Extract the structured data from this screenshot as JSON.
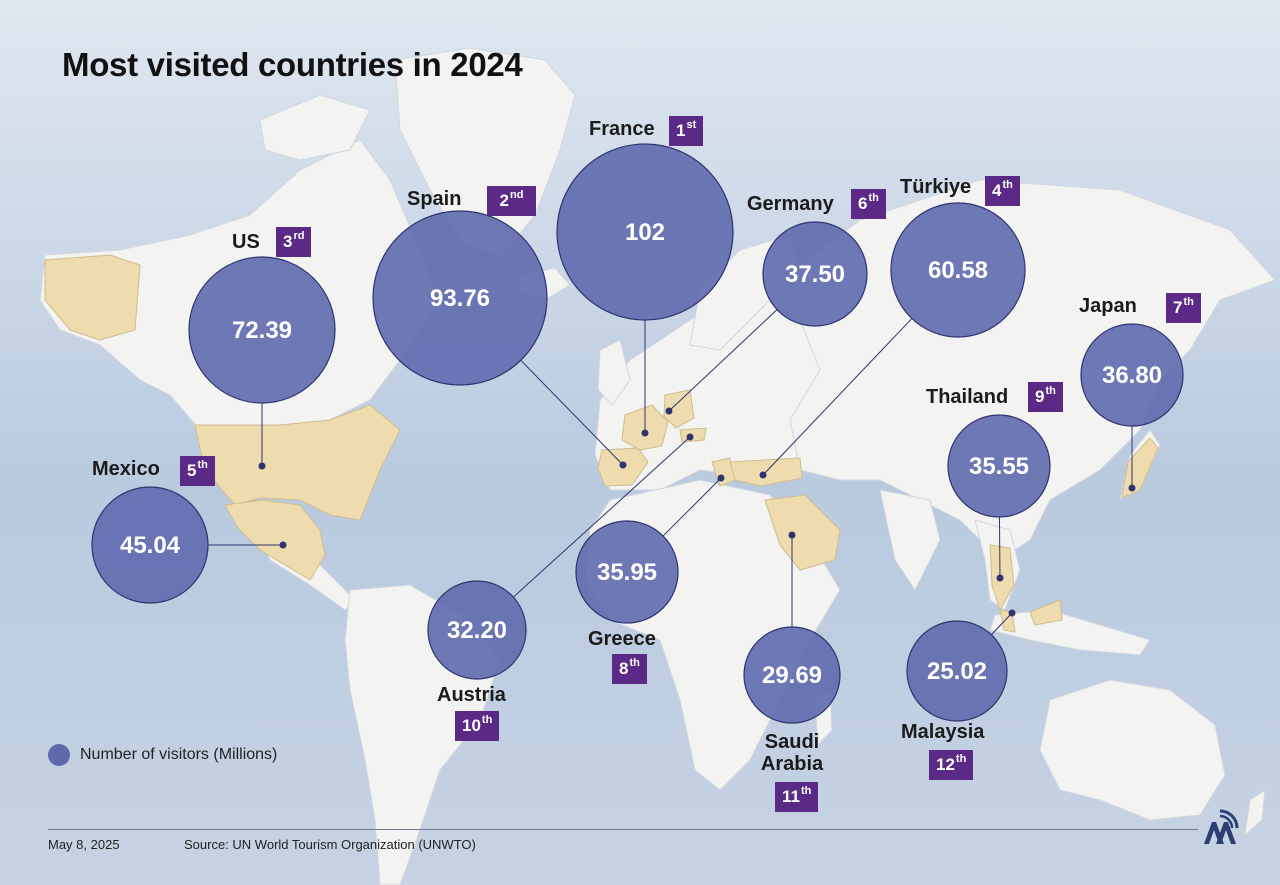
{
  "title": "Most visited countries in 2024",
  "colors": {
    "ocean": "#c3d2e3",
    "land": "#f2f2f0",
    "highlighted_land": "#efdcae",
    "bubble": "#5f6aae",
    "rank_badge": "#5b2a86",
    "connector": "#2f3470"
  },
  "legend": {
    "label": "Number of visitors (Millions)"
  },
  "footer": {
    "date": "May 8, 2025",
    "source": "Source: UN World Tourism Organization (UNWTO)"
  },
  "countries": [
    {
      "name": "France",
      "visitors": "102",
      "rank_num": "1",
      "rank_suffix": "st"
    },
    {
      "name": "Spain",
      "visitors": "93.76",
      "rank_num": "2",
      "rank_suffix": "nd"
    },
    {
      "name": "US",
      "visitors": "72.39",
      "rank_num": "3",
      "rank_suffix": "rd"
    },
    {
      "name": "Türkiye",
      "visitors": "60.58",
      "rank_num": "4",
      "rank_suffix": "th"
    },
    {
      "name": "Mexico",
      "visitors": "45.04",
      "rank_num": "5",
      "rank_suffix": "th"
    },
    {
      "name": "Germany",
      "visitors": "37.50",
      "rank_num": "6",
      "rank_suffix": "th"
    },
    {
      "name": "Japan",
      "visitors": "36.80",
      "rank_num": "7",
      "rank_suffix": "th"
    },
    {
      "name": "Greece",
      "visitors": "35.95",
      "rank_num": "8",
      "rank_suffix": "th"
    },
    {
      "name": "Thailand",
      "visitors": "35.55",
      "rank_num": "9",
      "rank_suffix": "th"
    },
    {
      "name": "Austria",
      "visitors": "32.20",
      "rank_num": "10",
      "rank_suffix": "th"
    },
    {
      "name": "Saudi Arabia",
      "name_line1": "Saudi",
      "name_line2": "Arabia",
      "visitors": "29.69",
      "rank_num": "11",
      "rank_suffix": "th"
    },
    {
      "name": "Malaysia",
      "visitors": "25.02",
      "rank_num": "12",
      "rank_suffix": "th"
    }
  ]
}
